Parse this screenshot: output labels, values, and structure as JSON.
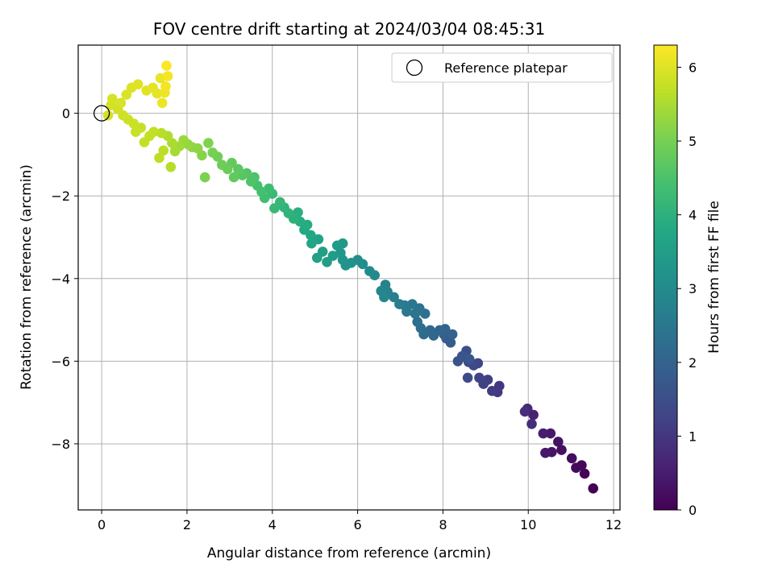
{
  "chart_data": {
    "type": "scatter",
    "title": "FOV centre drift starting at 2024/03/04 08:45:31",
    "xlabel": "Angular distance from reference (arcmin)",
    "ylabel": "Rotation from reference (arcmin)",
    "xlim": [
      -0.55,
      12.15
    ],
    "ylim": [
      -9.6,
      1.65
    ],
    "xticks": [
      0,
      2,
      4,
      6,
      8,
      10,
      12
    ],
    "yticks": [
      -8,
      -6,
      -4,
      -2,
      0
    ],
    "grid": true,
    "legend": {
      "position": "top-right",
      "entries": [
        "Reference platepar"
      ]
    },
    "colorbar": {
      "label": "Hours from first FF file",
      "range": [
        0,
        6.3
      ],
      "ticks": [
        0,
        1,
        2,
        3,
        4,
        5,
        6
      ],
      "colormap": "viridis"
    },
    "reference_point": {
      "x": 0,
      "y": 0
    },
    "points": [
      [
        11.52,
        -9.08,
        0.0
      ],
      [
        11.32,
        -8.72,
        0.05
      ],
      [
        11.25,
        -8.52,
        0.1
      ],
      [
        11.12,
        -8.58,
        0.15
      ],
      [
        11.02,
        -8.35,
        0.2
      ],
      [
        10.78,
        -8.15,
        0.25
      ],
      [
        10.7,
        -7.95,
        0.3
      ],
      [
        10.55,
        -8.2,
        0.35
      ],
      [
        10.4,
        -8.22,
        0.4
      ],
      [
        10.52,
        -7.75,
        0.45
      ],
      [
        10.35,
        -7.75,
        0.5
      ],
      [
        10.12,
        -7.3,
        0.6
      ],
      [
        9.98,
        -7.15,
        0.7
      ],
      [
        10.08,
        -7.52,
        0.8
      ],
      [
        9.92,
        -7.22,
        0.85
      ],
      [
        9.32,
        -6.6,
        1.0
      ],
      [
        9.28,
        -6.75,
        1.05
      ],
      [
        9.15,
        -6.72,
        1.1
      ],
      [
        9.05,
        -6.45,
        1.15
      ],
      [
        8.95,
        -6.55,
        1.2
      ],
      [
        8.85,
        -6.4,
        1.25
      ],
      [
        8.82,
        -6.05,
        1.3
      ],
      [
        8.72,
        -6.1,
        1.35
      ],
      [
        8.6,
        -6.02,
        1.4
      ],
      [
        8.58,
        -6.4,
        1.45
      ],
      [
        8.5,
        -5.9,
        1.5
      ],
      [
        8.55,
        -5.75,
        1.55
      ],
      [
        8.35,
        -6.0,
        1.6
      ],
      [
        8.45,
        -5.88,
        1.65
      ],
      [
        8.62,
        -5.95,
        1.7
      ],
      [
        8.18,
        -5.55,
        1.8
      ],
      [
        8.08,
        -5.45,
        1.85
      ],
      [
        8.02,
        -5.35,
        1.9
      ],
      [
        8.22,
        -5.35,
        1.95
      ],
      [
        8.05,
        -5.22,
        2.0
      ],
      [
        7.92,
        -5.25,
        2.05
      ],
      [
        7.78,
        -5.38,
        2.1
      ],
      [
        7.7,
        -5.25,
        2.15
      ],
      [
        7.55,
        -5.35,
        2.2
      ],
      [
        7.48,
        -5.2,
        2.25
      ],
      [
        7.4,
        -5.05,
        2.3
      ],
      [
        7.58,
        -4.85,
        2.35
      ],
      [
        7.45,
        -4.72,
        2.4
      ],
      [
        7.35,
        -4.85,
        2.45
      ],
      [
        7.28,
        -4.62,
        2.5
      ],
      [
        7.15,
        -4.8,
        2.55
      ],
      [
        7.1,
        -4.65,
        2.6
      ],
      [
        6.98,
        -4.62,
        2.65
      ],
      [
        6.85,
        -4.45,
        2.7
      ],
      [
        6.7,
        -4.32,
        2.75
      ],
      [
        6.65,
        -4.15,
        2.8
      ],
      [
        6.55,
        -4.3,
        2.85
      ],
      [
        6.62,
        -4.45,
        2.9
      ],
      [
        6.4,
        -3.92,
        2.95
      ],
      [
        6.28,
        -3.82,
        3.0
      ],
      [
        6.12,
        -3.65,
        3.05
      ],
      [
        6.0,
        -3.55,
        3.1
      ],
      [
        5.85,
        -3.62,
        3.15
      ],
      [
        5.72,
        -3.68,
        3.2
      ],
      [
        5.65,
        -3.55,
        3.25
      ],
      [
        5.6,
        -3.38,
        3.3
      ],
      [
        5.65,
        -3.15,
        3.35
      ],
      [
        5.52,
        -3.2,
        3.4
      ],
      [
        5.42,
        -3.45,
        3.45
      ],
      [
        5.28,
        -3.6,
        3.5
      ],
      [
        5.18,
        -3.35,
        3.55
      ],
      [
        5.05,
        -3.5,
        3.6
      ],
      [
        5.08,
        -3.05,
        3.65
      ],
      [
        4.92,
        -3.15,
        3.7
      ],
      [
        4.9,
        -2.95,
        3.75
      ],
      [
        4.75,
        -2.82,
        3.8
      ],
      [
        4.82,
        -2.7,
        3.85
      ],
      [
        4.65,
        -2.62,
        3.9
      ],
      [
        4.6,
        -2.4,
        3.95
      ],
      [
        4.5,
        -2.55,
        4.0
      ],
      [
        4.38,
        -2.42,
        4.05
      ],
      [
        4.28,
        -2.28,
        4.1
      ],
      [
        4.18,
        -2.15,
        4.15
      ],
      [
        4.05,
        -2.3,
        4.2
      ],
      [
        4.0,
        -1.95,
        4.25
      ],
      [
        3.92,
        -1.82,
        4.3
      ],
      [
        3.82,
        -2.05,
        4.35
      ],
      [
        3.75,
        -1.9,
        4.4
      ],
      [
        3.65,
        -1.75,
        4.45
      ],
      [
        3.58,
        -1.55,
        4.5
      ],
      [
        3.5,
        -1.65,
        4.55
      ],
      [
        3.4,
        -1.45,
        4.6
      ],
      [
        3.3,
        -1.5,
        4.65
      ],
      [
        3.2,
        -1.35,
        4.7
      ],
      [
        3.1,
        -1.55,
        4.75
      ],
      [
        3.05,
        -1.2,
        4.8
      ],
      [
        2.95,
        -1.35,
        4.85
      ],
      [
        2.82,
        -1.25,
        4.9
      ],
      [
        2.72,
        -1.05,
        4.95
      ],
      [
        2.6,
        -0.95,
        5.0
      ],
      [
        2.42,
        -1.55,
        5.05
      ],
      [
        2.5,
        -0.72,
        5.1
      ],
      [
        2.35,
        -1.02,
        5.15
      ],
      [
        2.25,
        -0.85,
        5.2
      ],
      [
        2.12,
        -0.82,
        5.25
      ],
      [
        2.02,
        -0.75,
        5.3
      ],
      [
        1.92,
        -0.65,
        5.35
      ],
      [
        1.82,
        -0.8,
        5.4
      ],
      [
        1.72,
        -0.92,
        5.45
      ],
      [
        1.65,
        -0.72,
        5.5
      ],
      [
        1.55,
        -0.55,
        5.55
      ],
      [
        1.62,
        -1.3,
        5.6
      ],
      [
        1.4,
        -0.48,
        5.62
      ],
      [
        1.45,
        -0.9,
        5.65
      ],
      [
        1.35,
        -1.08,
        5.68
      ],
      [
        1.22,
        -0.45,
        5.7
      ],
      [
        1.12,
        -0.55,
        5.72
      ],
      [
        1.0,
        -0.7,
        5.74
      ],
      [
        0.92,
        -0.35,
        5.76
      ],
      [
        0.8,
        -0.45,
        5.78
      ],
      [
        0.75,
        -0.25,
        5.8
      ],
      [
        0.62,
        -0.15,
        5.82
      ],
      [
        0.5,
        -0.05,
        5.84
      ],
      [
        0.38,
        0.1,
        5.86
      ],
      [
        0.22,
        0.2,
        5.88
      ],
      [
        0.15,
        -0.05,
        5.9
      ],
      [
        0.25,
        0.35,
        5.92
      ],
      [
        0.45,
        0.25,
        5.94
      ],
      [
        0.58,
        0.45,
        5.96
      ],
      [
        0.7,
        0.62,
        5.98
      ],
      [
        0.85,
        0.7,
        6.0
      ],
      [
        1.05,
        0.55,
        6.02
      ],
      [
        1.2,
        0.62,
        6.04
      ],
      [
        1.3,
        0.48,
        6.06
      ],
      [
        1.38,
        0.85,
        6.1
      ],
      [
        1.42,
        0.25,
        6.12
      ],
      [
        1.48,
        0.5,
        6.15
      ],
      [
        1.5,
        0.65,
        6.18
      ],
      [
        1.55,
        0.9,
        6.22
      ],
      [
        1.52,
        1.15,
        6.28
      ]
    ]
  }
}
